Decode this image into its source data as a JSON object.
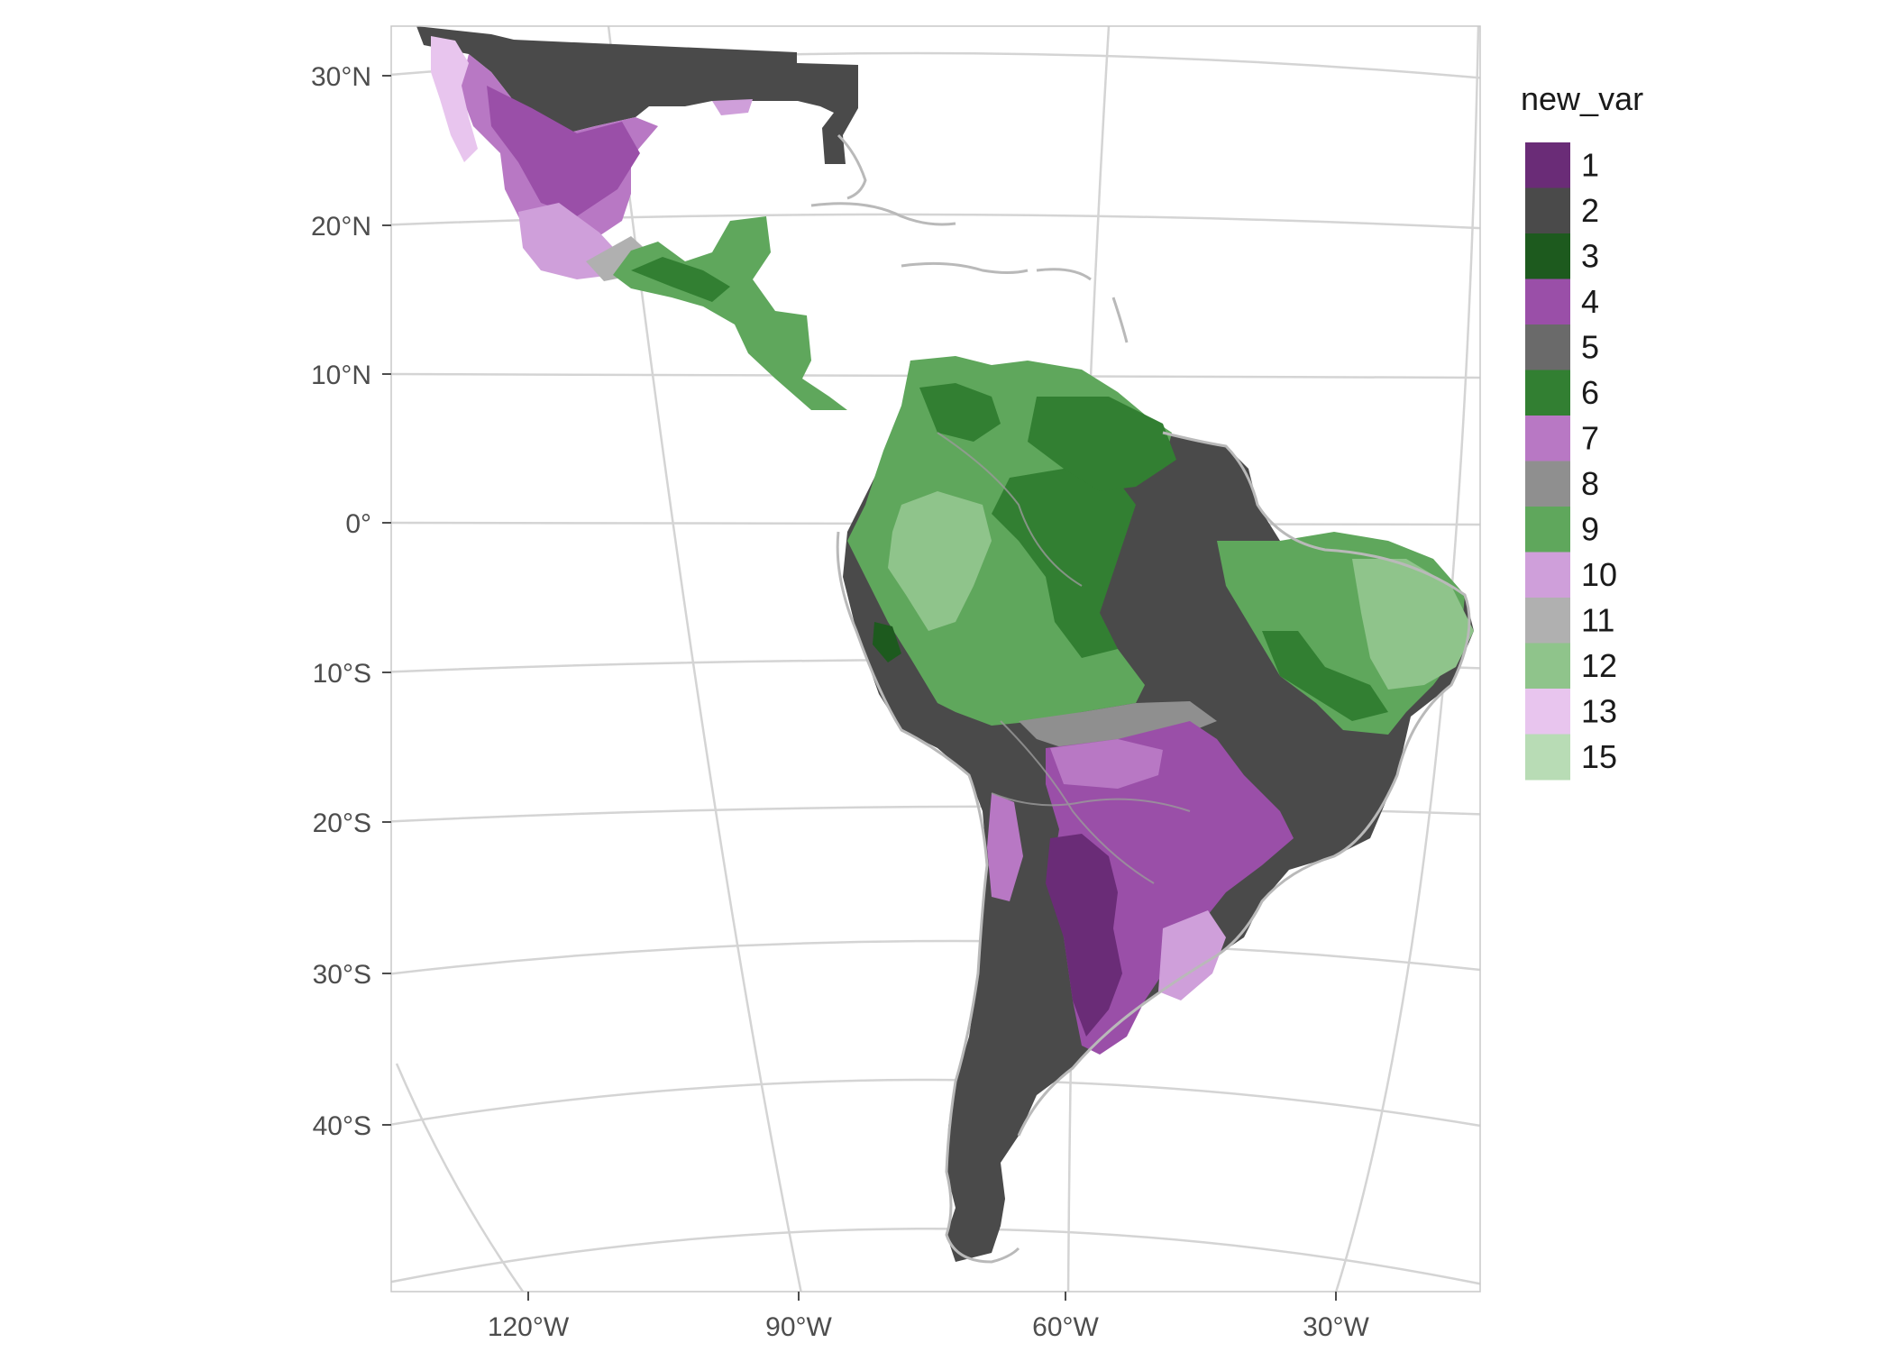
{
  "legend": {
    "title": "new_var",
    "items": [
      {
        "label": "1",
        "color": "#6a2c77"
      },
      {
        "label": "2",
        "color": "#4a4a4a"
      },
      {
        "label": "3",
        "color": "#1d5a1e"
      },
      {
        "label": "4",
        "color": "#9a4fa8"
      },
      {
        "label": "5",
        "color": "#6a6a6a"
      },
      {
        "label": "6",
        "color": "#327f32"
      },
      {
        "label": "7",
        "color": "#b878c4"
      },
      {
        "label": "8",
        "color": "#8f8f8f"
      },
      {
        "label": "9",
        "color": "#5fa75c"
      },
      {
        "label": "10",
        "color": "#cf9fda"
      },
      {
        "label": "11",
        "color": "#b0b0b0"
      },
      {
        "label": "12",
        "color": "#8fc48b"
      },
      {
        "label": "13",
        "color": "#e8c5ee"
      },
      {
        "label": "15",
        "color": "#b8dcb5"
      }
    ]
  },
  "axes": {
    "lat_labels": [
      "30°N",
      "20°N",
      "10°N",
      "0°",
      "10°S",
      "20°S",
      "30°S",
      "40°S"
    ],
    "lon_labels": [
      "120°W",
      "90°W",
      "60°W",
      "30°W"
    ]
  },
  "colors": {
    "panel_border": "#c8c8c8",
    "graticule": "#d4d4d4",
    "coastline": "#b9b9b9"
  }
}
